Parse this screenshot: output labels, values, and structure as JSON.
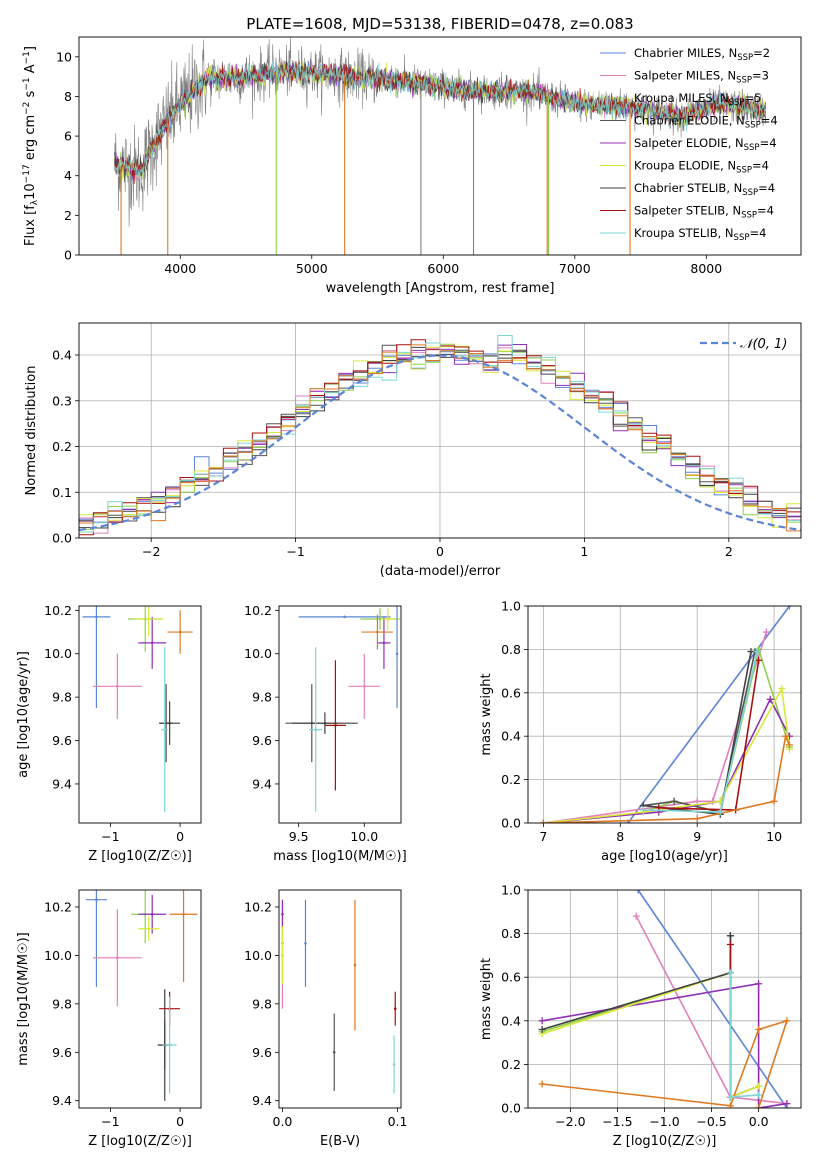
{
  "figure": {
    "title": "PLATE=1608, MJD=53138, FIBERID=0478, z=0.083"
  },
  "colors": {
    "Chabrier MILES": "#5b85d6",
    "Salpeter MILES": "#e27fbf",
    "Kroupa MILES": "#8fcf4c",
    "Chabrier ELODIE": "#555555",
    "Salpeter ELODIE": "#9130b5",
    "Kroupa ELODIE": "#d9e93a",
    "Chabrier STELIB": "#404040",
    "Salpeter STELIB": "#a81010",
    "Kroupa STELIB": "#7fd6d6",
    "orange": "#e07820",
    "data": "#808080",
    "gaussian": "#5b85d6"
  },
  "chart_data": [
    {
      "id": "spectrum",
      "type": "line",
      "xlabel": "wavelength [Angstrom, rest frame]",
      "ylabel_parts": [
        "Flux [f",
        "λ",
        "10",
        "−17",
        " erg cm",
        "−2",
        " s",
        "−1",
        " A",
        "−1",
        "]"
      ],
      "xlim": [
        3230,
        8720
      ],
      "ylim": [
        0,
        11
      ],
      "xticks": [
        "4000",
        "5000",
        "6000",
        "7000",
        "8000"
      ],
      "yticks": [
        "0",
        "2",
        "4",
        "6",
        "8",
        "10"
      ],
      "continuum_anchors": [
        [
          3500,
          4.6
        ],
        [
          3700,
          4.2
        ],
        [
          3800,
          5.6
        ],
        [
          3900,
          6.7
        ],
        [
          4000,
          7.6
        ],
        [
          4200,
          8.9
        ],
        [
          4500,
          9.0
        ],
        [
          4800,
          9.3
        ],
        [
          5200,
          9.1
        ],
        [
          5800,
          8.7
        ],
        [
          6200,
          8.3
        ],
        [
          6700,
          8.2
        ],
        [
          7000,
          7.6
        ],
        [
          7400,
          7.5
        ],
        [
          7800,
          7.0
        ],
        [
          8100,
          7.6
        ],
        [
          8450,
          7.3
        ]
      ],
      "spikes": [
        3550,
        3905,
        4730,
        5250,
        5830,
        6230,
        6790,
        6800,
        7420
      ],
      "legend": [
        {
          "label": "Chabrier MILES, N",
          "sub": "SSP",
          "value": "=2"
        },
        {
          "label": "Salpeter MILES, N",
          "sub": "SSP",
          "value": "=3"
        },
        {
          "label": "Kroupa MILES, N",
          "sub": "SSP",
          "value": "=5"
        },
        {
          "label": "Chabrier ELODIE, N",
          "sub": "SSP",
          "value": "=4"
        },
        {
          "label": "Salpeter ELODIE, N",
          "sub": "SSP",
          "value": "=4"
        },
        {
          "label": "Kroupa ELODIE, N",
          "sub": "SSP",
          "value": "=4"
        },
        {
          "label": "Chabrier STELIB, N",
          "sub": "SSP",
          "value": "=4"
        },
        {
          "label": "Salpeter STELIB, N",
          "sub": "SSP",
          "value": "=4"
        },
        {
          "label": "Kroupa STELIB, N",
          "sub": "SSP",
          "value": "=4"
        }
      ]
    },
    {
      "id": "residuals",
      "type": "histogram",
      "xlabel": "(data-model)/error",
      "ylabel": "Normed distribution",
      "xlim": [
        -2.5,
        2.5
      ],
      "ylim": [
        0,
        0.47
      ],
      "xticks": [
        "−2",
        "−1",
        "0",
        "1",
        "2"
      ],
      "yticks": [
        "0.0",
        "0.1",
        "0.2",
        "0.3",
        "0.4"
      ],
      "legend": "𝒩(0, 1)",
      "bin_width": 0.1,
      "grid": true
    },
    {
      "id": "age_vs_Z",
      "type": "errorbar",
      "xlabel": "Z [log10(Z/Z☉)]",
      "ylabel": "age  [log10(age/yr)]",
      "xlim": [
        -1.45,
        0.3
      ],
      "ylim": [
        9.22,
        10.22
      ],
      "xticks": [
        "−1",
        "0"
      ],
      "yticks": [
        "9.4",
        "9.6",
        "9.8",
        "10.0",
        "10.2"
      ],
      "points": [
        {
          "x": -1.2,
          "xerr": 0.2,
          "y": 10.17,
          "yerr": 0.42,
          "c": "Chabrier MILES"
        },
        {
          "x": -0.9,
          "xerr": 0.35,
          "y": 9.85,
          "yerr": 0.15,
          "c": "Salpeter MILES"
        },
        {
          "x": -0.5,
          "xerr": 0.25,
          "y": 10.16,
          "yerr": 0.15,
          "c": "Kroupa MILES"
        },
        {
          "x": -0.2,
          "xerr": 0.1,
          "y": 9.68,
          "yerr": 0.18,
          "c": "Chabrier ELODIE"
        },
        {
          "x": -0.4,
          "xerr": 0.2,
          "y": 10.05,
          "yerr": 0.12,
          "c": "Salpeter ELODIE"
        },
        {
          "x": -0.45,
          "xerr": 0.2,
          "y": 10.16,
          "yerr": 0.08,
          "c": "Kroupa ELODIE"
        },
        {
          "x": -0.15,
          "xerr": 0.15,
          "y": 9.68,
          "yerr": 0.1,
          "c": "Chabrier STELIB"
        },
        {
          "x": 0.0,
          "xerr": 0.18,
          "y": 10.1,
          "yerr": 0.1,
          "c": "orange"
        },
        {
          "x": -0.22,
          "xerr": 0.05,
          "y": 9.65,
          "yerr": 0.38,
          "c": "Kroupa STELIB"
        }
      ]
    },
    {
      "id": "age_vs_mass",
      "type": "errorbar",
      "xlabel": "mass [log10(M/M☉)]",
      "ylabel": "",
      "xlim": [
        9.35,
        10.28
      ],
      "ylim": [
        9.22,
        10.22
      ],
      "xticks": [
        "9.5",
        "10.0"
      ],
      "yticks": [
        "9.4",
        "9.6",
        "9.8",
        "10.0",
        "10.2"
      ],
      "points": [
        {
          "x": 9.85,
          "xerr": 0.35,
          "y": 10.17,
          "yerr": 0.0,
          "c": "Chabrier MILES"
        },
        {
          "x": 10.25,
          "xerr": 0.0,
          "y": 10.0,
          "yerr": 0.25,
          "c": "Chabrier MILES"
        },
        {
          "x": 10.0,
          "xerr": 0.12,
          "y": 9.85,
          "yerr": 0.15,
          "c": "Salpeter MILES"
        },
        {
          "x": 10.12,
          "xerr": 0.15,
          "y": 10.16,
          "yerr": 0.05,
          "c": "Kroupa MILES"
        },
        {
          "x": 9.6,
          "xerr": 0.2,
          "y": 9.68,
          "yerr": 0.18,
          "c": "Chabrier ELODIE"
        },
        {
          "x": 10.15,
          "xerr": 0.05,
          "y": 10.05,
          "yerr": 0.12,
          "c": "Salpeter ELODIE"
        },
        {
          "x": 10.18,
          "xerr": 0.05,
          "y": 10.16,
          "yerr": 0.05,
          "c": "Kroupa ELODIE"
        },
        {
          "x": 9.7,
          "xerr": 0.25,
          "y": 9.68,
          "yerr": 0.05,
          "c": "Chabrier STELIB"
        },
        {
          "x": 9.78,
          "xerr": 0.08,
          "y": 9.67,
          "yerr": 0.3,
          "c": "Salpeter STELIB"
        },
        {
          "x": 10.1,
          "xerr": 0.12,
          "y": 10.1,
          "yerr": 0.08,
          "c": "orange"
        },
        {
          "x": 9.63,
          "xerr": 0.05,
          "y": 9.65,
          "yerr": 0.38,
          "c": "Kroupa STELIB"
        }
      ]
    },
    {
      "id": "massweight_vs_age",
      "type": "line",
      "xlabel": "age  [log10(age/yr)]",
      "ylabel": "mass weight",
      "xlim": [
        6.8,
        10.35
      ],
      "ylim": [
        0,
        1.0
      ],
      "xticks": [
        "7",
        "8",
        "9",
        "10"
      ],
      "yticks": [
        "0.0",
        "0.2",
        "0.4",
        "0.6",
        "0.8",
        "1.0"
      ],
      "series": [
        {
          "c": "Chabrier MILES",
          "x": [
            8.1,
            10.2
          ],
          "y": [
            0.0,
            1.0
          ]
        },
        {
          "c": "Salpeter MILES",
          "x": [
            7.0,
            9.0,
            9.2,
            9.9
          ],
          "y": [
            0.0,
            0.1,
            0.1,
            0.88
          ]
        },
        {
          "c": "Kroupa MILES",
          "x": [
            8.3,
            8.7,
            9.3,
            9.8,
            10.2
          ],
          "y": [
            0.05,
            0.1,
            0.05,
            0.8,
            0.35
          ]
        },
        {
          "c": "Chabrier ELODIE",
          "x": [
            8.3,
            8.7,
            9.3,
            9.75
          ],
          "y": [
            0.08,
            0.1,
            0.05,
            0.79
          ]
        },
        {
          "c": "Salpeter ELODIE",
          "x": [
            7.0,
            8.5,
            9.3,
            9.95,
            10.2
          ],
          "y": [
            0.0,
            0.05,
            0.1,
            0.57,
            0.4
          ]
        },
        {
          "c": "Kroupa ELODIE",
          "x": [
            7.0,
            8.3,
            9.3,
            10.1,
            10.2
          ],
          "y": [
            0.0,
            0.05,
            0.1,
            0.62,
            0.34
          ]
        },
        {
          "c": "Chabrier STELIB",
          "x": [
            8.3,
            9.3,
            9.7
          ],
          "y": [
            0.08,
            0.04,
            0.79
          ]
        },
        {
          "c": "Salpeter STELIB",
          "x": [
            8.5,
            9.5,
            9.8
          ],
          "y": [
            0.07,
            0.06,
            0.75
          ]
        },
        {
          "c": "orange",
          "x": [
            7.0,
            9.0,
            10.0,
            10.15,
            10.2
          ],
          "y": [
            0.0,
            0.02,
            0.1,
            0.4,
            0.36
          ]
        },
        {
          "c": "Kroupa STELIB",
          "x": [
            8.3,
            9.3,
            9.78
          ],
          "y": [
            0.06,
            0.05,
            0.79
          ]
        }
      ]
    },
    {
      "id": "mass_vs_Z",
      "type": "errorbar",
      "xlabel": "Z [log10(Z/Z☉)]",
      "ylabel": "mass [log10(M/M☉)]",
      "xlim": [
        -1.45,
        0.3
      ],
      "ylim": [
        9.37,
        10.27
      ],
      "xticks": [
        "−1",
        "0"
      ],
      "yticks": [
        "9.4",
        "9.6",
        "9.8",
        "10.0",
        "10.2"
      ],
      "points": [
        {
          "x": -1.2,
          "xerr": 0.15,
          "y": 10.23,
          "yerr": 0.36,
          "c": "Chabrier MILES"
        },
        {
          "x": -0.9,
          "xerr": 0.35,
          "y": 9.99,
          "yerr": 0.2,
          "c": "Salpeter MILES"
        },
        {
          "x": -0.5,
          "xerr": 0.2,
          "y": 10.17,
          "yerr": 0.12,
          "c": "Kroupa MILES"
        },
        {
          "x": -0.22,
          "xerr": 0.1,
          "y": 9.63,
          "yerr": 0.1,
          "c": "Chabrier ELODIE"
        },
        {
          "x": -0.4,
          "xerr": 0.2,
          "y": 10.17,
          "yerr": 0.08,
          "c": "Salpeter ELODIE"
        },
        {
          "x": -0.45,
          "xerr": 0.15,
          "y": 10.11,
          "yerr": 0.05,
          "c": "Kroupa ELODIE"
        },
        {
          "x": -0.22,
          "xerr": 0.1,
          "y": 9.63,
          "yerr": 0.23,
          "c": "Chabrier STELIB"
        },
        {
          "x": -0.15,
          "xerr": 0.15,
          "y": 9.78,
          "yerr": 0.07,
          "c": "Salpeter STELIB"
        },
        {
          "x": 0.05,
          "xerr": 0.2,
          "y": 10.17,
          "yerr": 0.28,
          "c": "orange"
        },
        {
          "x": -0.15,
          "xerr": 0.1,
          "y": 9.63,
          "yerr": 0.2,
          "c": "Kroupa STELIB"
        }
      ]
    },
    {
      "id": "mass_vs_ebv",
      "type": "errorbar",
      "xlabel": "E(B-V)",
      "ylabel": "",
      "xlim": [
        -0.003,
        0.103
      ],
      "ylim": [
        9.37,
        10.27
      ],
      "xticks": [
        "0.0",
        "0.1"
      ],
      "yticks": [
        "9.4",
        "9.6",
        "9.8",
        "10.0",
        "10.2"
      ],
      "points": [
        {
          "x": 0.02,
          "xerr": 0,
          "y": 10.05,
          "yerr": 0.18,
          "c": "Chabrier MILES"
        },
        {
          "x": 0.0,
          "xerr": 0,
          "y": 10.0,
          "yerr": 0.22,
          "c": "Salpeter MILES"
        },
        {
          "x": 0.0,
          "xerr": 0,
          "y": 10.05,
          "yerr": 0.15,
          "c": "Kroupa MILES"
        },
        {
          "x": 0.045,
          "xerr": 0,
          "y": 9.6,
          "yerr": 0.16,
          "c": "Chabrier ELODIE"
        },
        {
          "x": 0.0,
          "xerr": 0,
          "y": 10.17,
          "yerr": 0.06,
          "c": "Salpeter ELODIE"
        },
        {
          "x": 0.0,
          "xerr": 0,
          "y": 10.0,
          "yerr": 0.12,
          "c": "Kroupa ELODIE"
        },
        {
          "x": 0.098,
          "xerr": 0,
          "y": 9.78,
          "yerr": 0.07,
          "c": "Salpeter STELIB"
        },
        {
          "x": 0.063,
          "xerr": 0,
          "y": 9.96,
          "yerr": 0.27,
          "c": "orange"
        },
        {
          "x": 0.097,
          "xerr": 0,
          "y": 9.55,
          "yerr": 0.12,
          "c": "Kroupa STELIB"
        }
      ]
    },
    {
      "id": "massweight_vs_Z",
      "type": "line",
      "xlabel": "Z [log10(Z/Z☉)]",
      "ylabel": "mass weight",
      "xlim": [
        -2.45,
        0.45
      ],
      "ylim": [
        0,
        1.0
      ],
      "xticks": [
        "−2.0",
        "−1.5",
        "−1.0",
        "−0.5",
        "0.0"
      ],
      "yticks": [
        "0.0",
        "0.2",
        "0.4",
        "0.6",
        "0.8",
        "1.0"
      ],
      "series": [
        {
          "c": "Chabrier MILES",
          "x": [
            -1.28,
            0.3
          ],
          "y": [
            1.0,
            0.0
          ]
        },
        {
          "c": "Salpeter MILES",
          "x": [
            -1.3,
            -0.3,
            0.3
          ],
          "y": [
            0.88,
            0.05,
            0.02
          ]
        },
        {
          "c": "Kroupa MILES",
          "x": [
            -2.3,
            -0.3,
            -0.3,
            0.0
          ],
          "y": [
            0.35,
            0.62,
            0.05,
            0.1
          ]
        },
        {
          "c": "Chabrier ELODIE",
          "x": [
            -0.3,
            -0.3,
            0.0
          ],
          "y": [
            0.79,
            0.05,
            0.1
          ]
        },
        {
          "c": "Salpeter ELODIE",
          "x": [
            -2.3,
            0.0,
            0.0,
            0.3
          ],
          "y": [
            0.4,
            0.57,
            0.0,
            0.02
          ]
        },
        {
          "c": "Kroupa ELODIE",
          "x": [
            -2.3,
            -0.3,
            -0.3,
            0.0
          ],
          "y": [
            0.34,
            0.62,
            0.05,
            0.1
          ]
        },
        {
          "c": "Chabrier STELIB",
          "x": [
            -2.3,
            -0.3,
            -0.3
          ],
          "y": [
            0.36,
            0.62,
            0.79
          ]
        },
        {
          "c": "Salpeter STELIB",
          "x": [
            -0.3,
            -0.3
          ],
          "y": [
            0.75,
            0.05
          ]
        },
        {
          "c": "orange",
          "x": [
            -2.3,
            -0.3,
            0.0,
            0.3,
            0.0
          ],
          "y": [
            0.11,
            0.01,
            0.36,
            0.4,
            0.0
          ]
        },
        {
          "c": "Kroupa STELIB",
          "x": [
            -0.3,
            -0.3,
            0.0
          ],
          "y": [
            0.62,
            0.05,
            0.06
          ]
        }
      ]
    }
  ]
}
